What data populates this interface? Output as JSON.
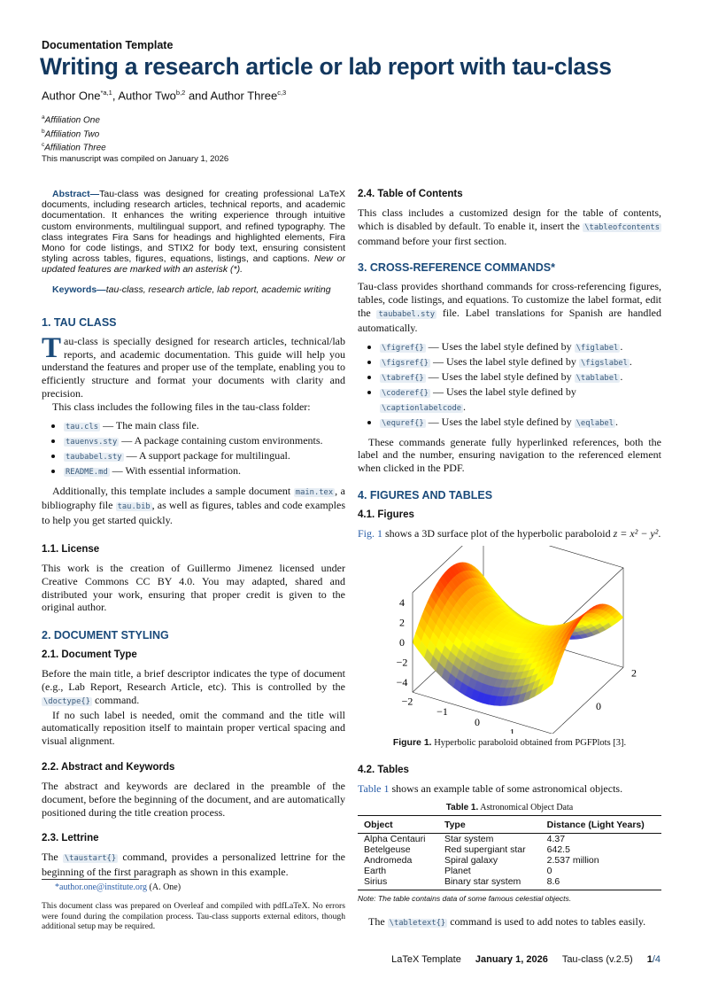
{
  "header": {
    "doctype": "Documentation Template",
    "title": "Writing a research article or lab report with tau-class",
    "authors": [
      {
        "name": "Author One",
        "sup": "*a,1"
      },
      {
        "name": "Author Two",
        "sup": "b,2"
      },
      {
        "name": "Author Three",
        "sup": "c,3"
      }
    ],
    "author_sep1": ", ",
    "author_sep2": " and ",
    "affiliations": [
      {
        "sup": "a",
        "text": "Affiliation One"
      },
      {
        "sup": "b",
        "text": "Affiliation Two"
      },
      {
        "sup": "c",
        "text": "Affiliation Three"
      }
    ],
    "compiled": "This manuscript was compiled on January 1, 2026"
  },
  "abstract": {
    "label": "Abstract—",
    "text": "Tau-class was designed for creating professional LaTeX documents, including research articles, technical reports, and academic documentation. It enhances the writing experience through intuitive custom environments, multilingual support, and refined typography. The class integrates Fira Sans for headings and highlighted elements, Fira Mono for code listings, and STIX2 for body text, ensuring consistent styling across tables, figures, equations, listings, and captions. ",
    "italic": "New or updated features are marked with an asterisk (*)."
  },
  "keywords": {
    "label": "Keywords—",
    "text": "tau-class, research article, lab report, academic writing"
  },
  "s1": {
    "heading": "1.  TAU CLASS",
    "lettrine": "T",
    "p1": [
      {
        "t": "au-class is specially designed for research articles, technical/lab reports, and academic documentation. This guide will help you understand the features and proper use of the template, enabling you to efficiently structure and format your documents with clarity and precision."
      }
    ],
    "p2": [
      {
        "t": "This class includes the following files in the tau-class folder:"
      }
    ],
    "files": [
      [
        {
          "c": "tau.cls"
        },
        {
          "t": " — The main class file."
        }
      ],
      [
        {
          "c": "tauenvs.sty"
        },
        {
          "t": " — A package containing custom environments."
        }
      ],
      [
        {
          "c": "taubabel.sty"
        },
        {
          "t": " — A support package for multilingual."
        }
      ],
      [
        {
          "c": "README.md"
        },
        {
          "t": " — With essential information."
        }
      ]
    ],
    "p3": [
      {
        "t": "Additionally, this template includes a sample document "
      },
      {
        "c": "main.tex"
      },
      {
        "t": ", a bibliography file "
      },
      {
        "c": "tau.bib"
      },
      {
        "t": ", as well as figures, tables and code examples to help you get started quickly."
      }
    ]
  },
  "s11": {
    "heading": "1.1.  License",
    "p": [
      {
        "t": "This work is the creation of Guillermo Jimenez licensed under Creative Commons CC BY 4.0. You may adapted, shared and distributed your work, ensuring that proper credit is given to the original author."
      }
    ]
  },
  "s2": {
    "heading": "2.  DOCUMENT STYLING",
    "h21": "2.1.  Document Type",
    "p1": [
      {
        "t": "Before the main title, a brief descriptor indicates the type of document (e.g., Lab Report, Research Article, etc).  This is controlled by the "
      },
      {
        "c": "\\doctype{}"
      },
      {
        "t": " command."
      }
    ],
    "p2": [
      {
        "t": "If no such label is needed, omit the command and the title will automatically reposition itself to maintain proper vertical spacing and visual alignment."
      }
    ],
    "h22": "2.2.  Abstract and Keywords",
    "p3": [
      {
        "t": "The abstract and keywords are declared in the preamble of the document, before the beginning of the document, and are automatically positioned during the title creation process."
      }
    ],
    "h23": "2.3.  Lettrine",
    "p4": [
      {
        "t": "The "
      },
      {
        "c": "\\taustart{}"
      },
      {
        "t": " command, provides a personalized lettrine for the beginning of the first paragraph as shown in this example."
      }
    ]
  },
  "footnote": {
    "email": "*author.one@institute.org",
    "who": " (A. One)"
  },
  "compile_note": "This document class was prepared on Overleaf and compiled with pdfLaTeX. No errors were found during the compilation process. Tau-class supports external editors, though additional setup may be required.",
  "s24": {
    "heading": "2.4.  Table of Contents",
    "p": [
      {
        "t": "This class includes a customized design for the table of contents, which is disabled by default. To enable it, insert the "
      },
      {
        "c": "\\tableofcontents"
      },
      {
        "t": " command before your first section."
      }
    ]
  },
  "s3": {
    "heading": "3.  CROSS-REFERENCE COMMANDS*",
    "p1": [
      {
        "t": "Tau-class provides shorthand commands for cross-referencing figures, tables, code listings, and equations.  To customize the label format, edit the "
      },
      {
        "c": "taubabel.sty"
      },
      {
        "t": " file. Label translations for Spanish are handled automatically."
      }
    ],
    "items": [
      [
        {
          "c": "\\figref{}"
        },
        {
          "t": " — Uses the label style defined by "
        },
        {
          "c": "\\figlabel"
        },
        {
          "t": "."
        }
      ],
      [
        {
          "c": "\\figsref{}"
        },
        {
          "t": " — Uses the label style defined by "
        },
        {
          "c": "\\figslabel"
        },
        {
          "t": "."
        }
      ],
      [
        {
          "c": "\\tabref{}"
        },
        {
          "t": " — Uses the label style defined by "
        },
        {
          "c": "\\tablabel"
        },
        {
          "t": "."
        }
      ],
      [
        {
          "c": "\\coderef{}"
        },
        {
          "t": " — Uses the label style defined by "
        },
        {
          "c": "\\captionlabelcode"
        },
        {
          "t": "."
        }
      ],
      [
        {
          "c": "\\equref{}"
        },
        {
          "t": " — Uses the label style defined by "
        },
        {
          "c": "\\eqlabel"
        },
        {
          "t": "."
        }
      ]
    ],
    "p2": [
      {
        "t": "These commands generate fully hyperlinked references, both the label and the number, ensuring navigation to the referenced element when clicked in the PDF."
      }
    ]
  },
  "s4": {
    "heading": "4.  FIGURES AND TABLES",
    "h41": "4.1.  Figures",
    "p1": [
      {
        "l": "Fig. 1"
      },
      {
        "t": " shows a 3D surface plot of the hyperbolic paraboloid "
      },
      {
        "m": "z = x² − y²"
      },
      {
        "t": "."
      }
    ],
    "figure": {
      "caption_label": "Figure 1.",
      "caption": " Hyperbolic paraboloid obtained from PGFPlots [3].",
      "function": "z = x^2 - y^2",
      "xlim": [
        -2,
        2
      ],
      "ylim": [
        -2,
        2
      ],
      "zlim": [
        -5,
        5
      ],
      "x_ticks": [
        "−2",
        "−1",
        "0",
        "1",
        "2"
      ],
      "y_ticks": [
        "−2",
        "0",
        "2"
      ],
      "z_ticks": [
        "−4",
        "−2",
        "0",
        "2",
        "4"
      ],
      "colormap": [
        "#1a1aff",
        "#ffff00",
        "#ffa500",
        "#ff2200"
      ]
    },
    "h42": "4.2.  Tables",
    "p2": [
      {
        "l": "Table 1"
      },
      {
        "t": " shows an example table of some astronomical objects."
      }
    ],
    "table": {
      "caption_label": "Table 1.",
      "caption": " Astronomical Object Data",
      "columns": [
        "Object",
        "Type",
        "Distance (Light Years)"
      ],
      "rows": [
        [
          "Alpha Centauri",
          "Star system",
          "4.37"
        ],
        [
          "Betelgeuse",
          "Red supergiant star",
          "642.5"
        ],
        [
          "Andromeda",
          "Spiral galaxy",
          "2.537 million"
        ],
        [
          "Earth",
          "Planet",
          "0"
        ],
        [
          "Sirius",
          "Binary star system",
          "8.6"
        ]
      ],
      "note": "Note: The table contains data of some famous celestial objects."
    },
    "p3": [
      {
        "t": "The "
      },
      {
        "c": "\\tabletext{}"
      },
      {
        "t": " command is used to add notes to tables easily."
      }
    ]
  },
  "footer": {
    "left": "LaTeX Template",
    "date": "January 1, 2026",
    "version": "Tau-class (v.2.5)",
    "page": "1",
    "total": "/4"
  }
}
